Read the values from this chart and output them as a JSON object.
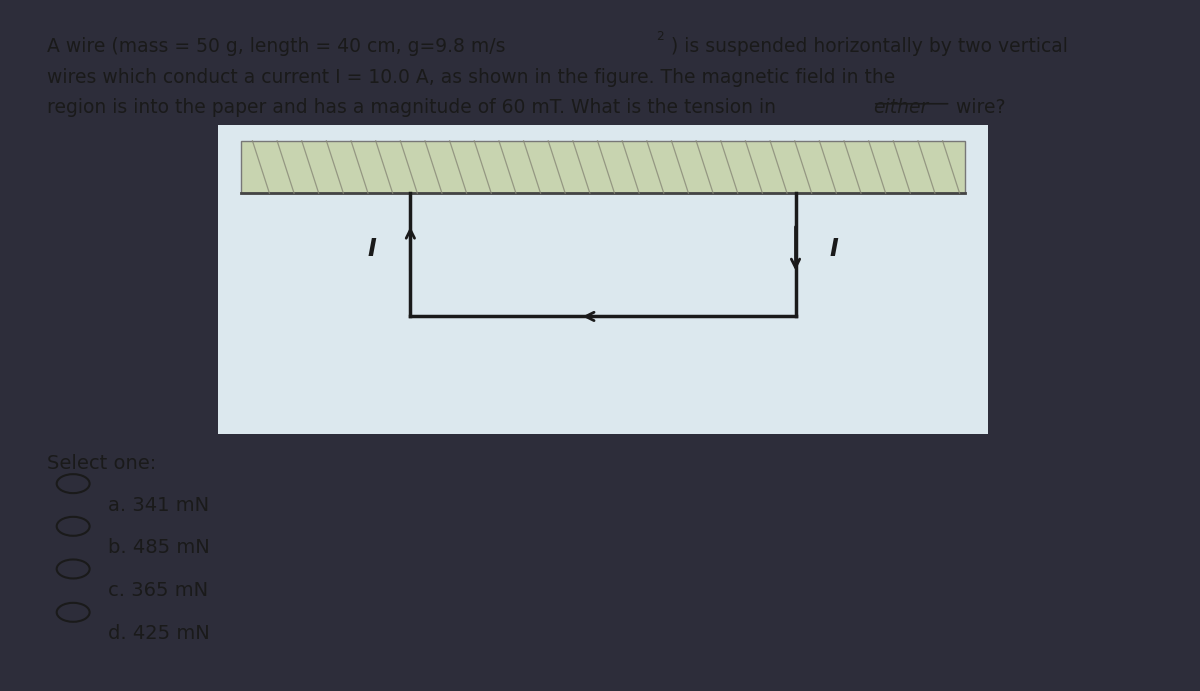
{
  "bg_color": "#a8c4d4",
  "outer_bg": "#2d2d3a",
  "figure_bg": "#dce8ee",
  "wire_color": "#1a1a1a",
  "arrow_color": "#1a1a1a",
  "text_color": "#1a1a1a",
  "font_size": 13.5,
  "option_font_size": 14,
  "select_one": "Select one:",
  "options": [
    {
      "label": "a.",
      "text": "341 mN"
    },
    {
      "label": "b.",
      "text": "485 mN"
    },
    {
      "label": "c.",
      "text": "365 mN"
    },
    {
      "label": "d.",
      "text": "425 mN"
    }
  ]
}
